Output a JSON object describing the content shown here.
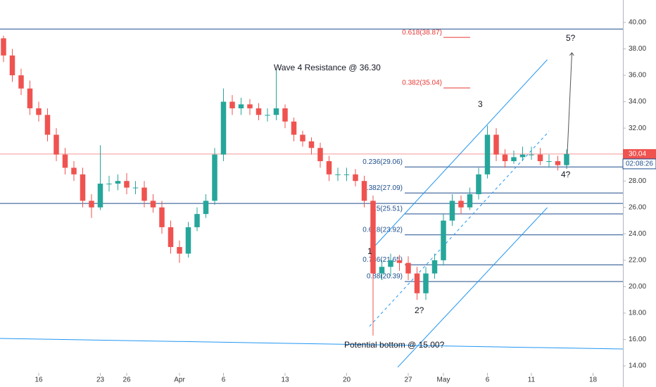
{
  "chart_data": {
    "type": "candlestick",
    "x": [
      -4,
      -3,
      -2,
      -1,
      0,
      1,
      2,
      3,
      4,
      5,
      6,
      7,
      8,
      9,
      10,
      11,
      12,
      13,
      14,
      15,
      16,
      17,
      18,
      19,
      20,
      21,
      22,
      23,
      24,
      25,
      26,
      27,
      28,
      29,
      30,
      31,
      32,
      33,
      34,
      35,
      36,
      37,
      38,
      39,
      40,
      41,
      42,
      43,
      44,
      45,
      46,
      47,
      48,
      49,
      50,
      51,
      52,
      53,
      54,
      55,
      56,
      57,
      58,
      59,
      60
    ],
    "open": [
      38.8,
      37.5,
      36,
      35,
      33.5,
      33,
      31.5,
      30,
      29,
      28.5,
      26.5,
      26,
      27.8,
      27.8,
      28,
      27.5,
      27.5,
      26.5,
      26,
      24.5,
      23,
      22.5,
      24.5,
      25.5,
      26.5,
      30,
      34,
      33.5,
      33.8,
      33.5,
      33,
      33,
      33.5,
      32.5,
      31.5,
      31,
      30.5,
      29.5,
      28.5,
      28.5,
      28.5,
      28,
      26.5,
      21,
      21.5,
      22,
      21.8,
      21,
      19.5,
      21,
      22,
      25,
      26.5,
      26,
      27,
      28.5,
      31.5,
      30,
      29.5,
      29.8,
      30,
      30,
      29.5,
      29.5,
      29.2
    ],
    "high": [
      39.0,
      38.0,
      36.5,
      35.6,
      34.0,
      33.5,
      32.0,
      30.5,
      29.5,
      29.0,
      27.0,
      30.7,
      28.4,
      28.5,
      28.6,
      28.0,
      28.0,
      27.0,
      26.5,
      25.0,
      23.5,
      24.9,
      26.0,
      27.0,
      30.5,
      35.0,
      34.5,
      34.3,
      34.2,
      33.9,
      33.5,
      36.4,
      33.8,
      32.8,
      31.8,
      31.3,
      30.9,
      29.9,
      29.0,
      29.0,
      28.9,
      28.4,
      26.9,
      22.0,
      22.5,
      22.4,
      22.3,
      21.5,
      21.5,
      22.5,
      25.5,
      27.0,
      26.9,
      27.5,
      29.0,
      32.2,
      32.0,
      30.4,
      30.3,
      30.6,
      30.6,
      30.5,
      30.0,
      29.9,
      30.4
    ],
    "low": [
      37.0,
      35.5,
      34.5,
      33.0,
      32.5,
      31.0,
      29.5,
      28.5,
      28.0,
      26.0,
      25.2,
      25.8,
      27.2,
      27.3,
      27.0,
      27.0,
      26.0,
      25.6,
      24.0,
      22.5,
      21.8,
      22.2,
      24.2,
      25.2,
      26.2,
      29.5,
      33.0,
      33.0,
      33.0,
      32.6,
      32.5,
      32.6,
      32.0,
      31.0,
      30.6,
      30.0,
      29.0,
      28.0,
      28.0,
      28.0,
      27.6,
      26.0,
      16.3,
      20.5,
      20.8,
      21.2,
      20.5,
      19.0,
      19.0,
      20.6,
      21.6,
      24.6,
      25.5,
      25.8,
      26.6,
      28.2,
      29.5,
      29.0,
      29.3,
      29.5,
      29.6,
      29.2,
      29.0,
      28.8,
      29.0
    ],
    "close": [
      37.5,
      36,
      35,
      33.5,
      33,
      31.5,
      30,
      29,
      28.5,
      26.5,
      26,
      27.8,
      27.8,
      28,
      27.5,
      27.5,
      26.5,
      26,
      24.5,
      23,
      22.5,
      24.5,
      25.5,
      26.5,
      30,
      34,
      33.5,
      33.8,
      33.5,
      33,
      33,
      33.5,
      32.5,
      31.5,
      31,
      30.5,
      29.5,
      28.5,
      28.5,
      28.5,
      28,
      26.5,
      21,
      21.5,
      22,
      21.8,
      21,
      19.5,
      21,
      22,
      25,
      26.5,
      26,
      27,
      28.5,
      31.5,
      30,
      29.5,
      29.8,
      30,
      30,
      29.5,
      29.5,
      29.2,
      30.04
    ],
    "up_color": "#26a69a",
    "down_color": "#ef5350",
    "xlim": [
      -4.4,
      66.4
    ],
    "xticks": [
      {
        "value": 0,
        "label": "16"
      },
      {
        "value": 7,
        "label": "23"
      },
      {
        "value": 10,
        "label": "26"
      },
      {
        "value": 16,
        "label": "Apr"
      },
      {
        "value": 21,
        "label": "6"
      },
      {
        "value": 28,
        "label": "13"
      },
      {
        "value": 35,
        "label": "20"
      },
      {
        "value": 42,
        "label": "27"
      },
      {
        "value": 46,
        "label": "May"
      },
      {
        "value": 51,
        "label": "6"
      },
      {
        "value": 56,
        "label": "11"
      },
      {
        "value": 63,
        "label": "18"
      }
    ],
    "ylim": [
      13.47,
      41.7
    ],
    "yticks": [
      {
        "value": 14,
        "label": "14.00"
      },
      {
        "value": 16,
        "label": "16.00"
      },
      {
        "value": 18,
        "label": "18.00"
      },
      {
        "value": 20,
        "label": "20.00"
      },
      {
        "value": 22,
        "label": "22.00"
      },
      {
        "value": 24,
        "label": "24.00"
      },
      {
        "value": 26,
        "label": "26.00"
      },
      {
        "value": 28,
        "label": "28.00"
      },
      {
        "value": 30,
        "label": "30.00"
      },
      {
        "value": 32,
        "label": "32.00"
      },
      {
        "value": 34,
        "label": "34.00"
      },
      {
        "value": 36,
        "label": "36.00"
      },
      {
        "value": 38,
        "label": "38.00"
      },
      {
        "value": 40,
        "label": "40.00"
      }
    ],
    "last_price": {
      "value": 30.04,
      "label": "30.04",
      "countdown": "02:08:26"
    },
    "horizontal_lines": [
      39.5,
      26.3
    ],
    "fib_levels": [
      {
        "label": "0.236(29.06)",
        "value": 29.06
      },
      {
        "label": "0.382(27.09)",
        "value": 27.09
      },
      {
        "label": "0.5(25.51)",
        "value": 25.51
      },
      {
        "label": "0.618(23.92)",
        "value": 23.92
      },
      {
        "label": "0.786(21.65)",
        "value": 21.65
      },
      {
        "label": "0.88(20.39)",
        "value": 20.39
      }
    ],
    "fib_targets": [
      {
        "label": "0.618(38.87)",
        "value": 38.87
      },
      {
        "label": "0.382(35.04)",
        "value": 35.04
      }
    ],
    "trendlines": [
      [
        [
          -4.4,
          16.08
        ],
        [
          66.4,
          15.28
        ]
      ],
      [
        [
          37.8,
          22.79
        ],
        [
          57.8,
          37.18
        ]
      ],
      [
        [
          40.8,
          13.9
        ],
        [
          57.8,
          25.98
        ]
      ]
    ],
    "dashed_lines": [
      [
        [
          37.6,
          17.0
        ],
        [
          58.0,
          31.76
        ]
      ]
    ],
    "arrows": [
      [
        [
          60.0,
          28.92
        ],
        [
          60.6,
          37.71
        ]
      ]
    ],
    "annotations": [
      "Wave 4 Resistance @ 36.30",
      "Potential bottom @ 15.00?",
      "1",
      "2?",
      "3",
      "4?",
      "5?"
    ]
  }
}
